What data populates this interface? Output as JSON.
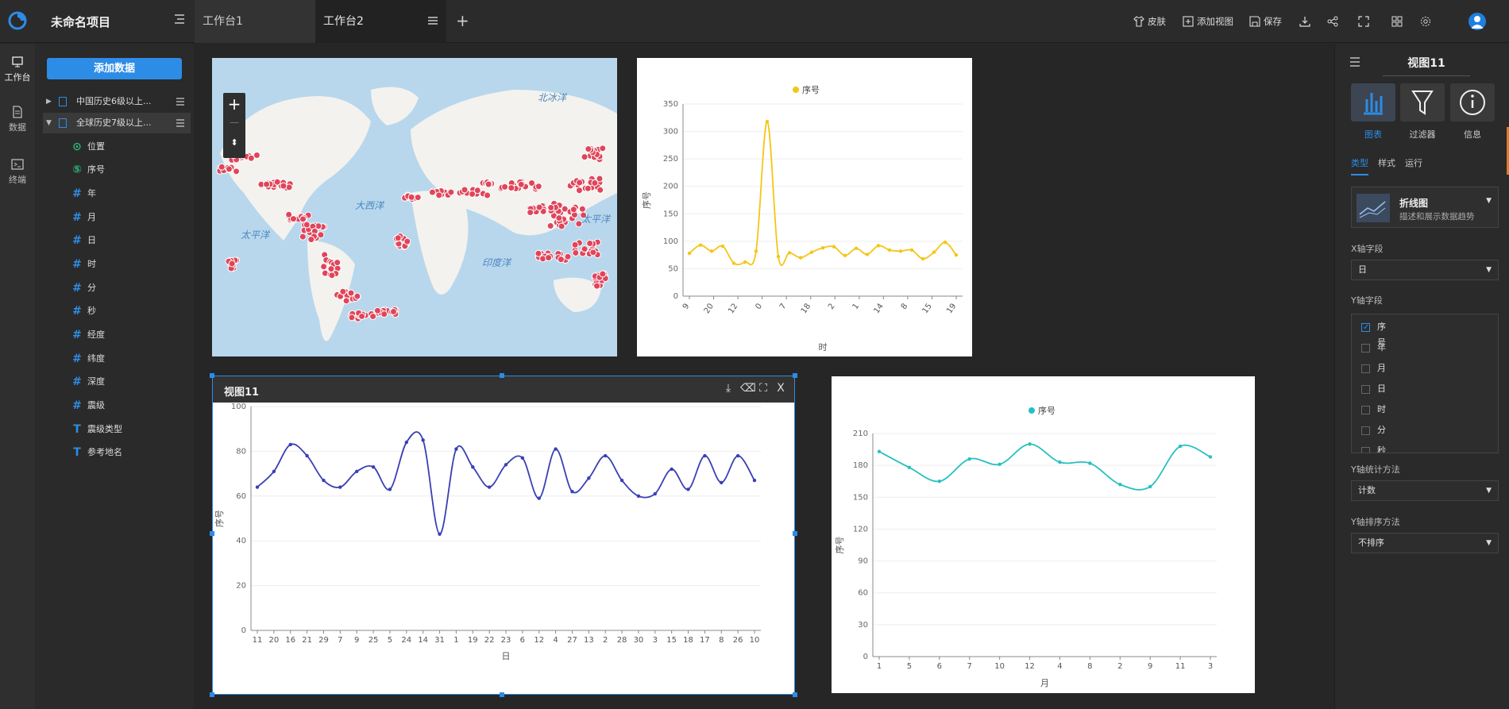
{
  "app": {
    "project_title": "未命名项目",
    "tabs": [
      {
        "label": "工作台1"
      },
      {
        "label": "工作台2"
      }
    ],
    "toolbar": {
      "skin": "皮肤",
      "add_view": "添加视图",
      "save": "保存"
    }
  },
  "leftnav": {
    "items": [
      {
        "label": "工作台"
      },
      {
        "label": "数据"
      },
      {
        "label": "终端"
      }
    ]
  },
  "datapanel": {
    "add_button": "添加数据",
    "datasets": [
      {
        "label": "中国历史6级以上..."
      },
      {
        "label": "全球历史7级以上..."
      }
    ],
    "fields": [
      {
        "icon": "location-icon",
        "label": "位置"
      },
      {
        "icon": "serial-icon",
        "label": "序号"
      },
      {
        "icon": "hash-icon",
        "label": "年"
      },
      {
        "icon": "hash-icon",
        "label": "月"
      },
      {
        "icon": "hash-icon",
        "label": "日"
      },
      {
        "icon": "hash-icon",
        "label": "时"
      },
      {
        "icon": "hash-icon",
        "label": "分"
      },
      {
        "icon": "hash-icon",
        "label": "秒"
      },
      {
        "icon": "hash-icon",
        "label": "经度"
      },
      {
        "icon": "hash-icon",
        "label": "纬度"
      },
      {
        "icon": "hash-icon",
        "label": "深度"
      },
      {
        "icon": "hash-icon",
        "label": "震级"
      },
      {
        "icon": "text-icon",
        "label": "震级类型"
      },
      {
        "icon": "text-icon",
        "label": "参考地名"
      }
    ]
  },
  "map": {
    "labels": {
      "north_ocean": "北冰洋",
      "atlantic": "大西洋",
      "pacific_left": "太平洋",
      "pacific_right": "太平洋",
      "indian": "印度洋"
    },
    "zoom_in": "+",
    "zoom_out": "—"
  },
  "selected_view": {
    "title": "视图11",
    "close_label": "X"
  },
  "colors": {
    "accent": "#2d8ce6",
    "yellow_series": "#f5c518",
    "blue_series": "#3a3fb5",
    "cyan_series": "#27c0c0",
    "map_points": "#e0455a",
    "ocean": "#b8d7ec",
    "land": "#f3f2ee"
  },
  "chart_data": [
    {
      "type": "line",
      "legend": "序号",
      "xlabel": "时",
      "ylabel": "序号",
      "ylim": [
        0,
        350
      ],
      "yticks": [
        0,
        50,
        100,
        150,
        200,
        250,
        300,
        350
      ],
      "tick_labels": [
        "9",
        "20",
        "12",
        "0",
        "7",
        "18",
        "2",
        "1",
        "14",
        "8",
        "15",
        "19"
      ],
      "series": [
        {
          "name": "序号",
          "values": [
            78,
            93,
            82,
            91,
            60,
            62,
            82,
            318,
            72,
            79,
            70,
            80,
            88,
            90,
            74,
            87,
            76,
            92,
            84,
            82,
            84,
            68,
            80,
            98,
            75
          ]
        }
      ]
    },
    {
      "type": "line",
      "legend": "序号",
      "xlabel": "日",
      "ylabel": "序号",
      "ylim": [
        0,
        100
      ],
      "yticks": [
        0,
        20,
        40,
        60,
        80,
        100
      ],
      "categories": [
        "11",
        "20",
        "16",
        "21",
        "29",
        "7",
        "9",
        "25",
        "5",
        "24",
        "14",
        "31",
        "1",
        "19",
        "22",
        "23",
        "6",
        "12",
        "4",
        "27",
        "13",
        "2",
        "28",
        "30",
        "3",
        "15",
        "18",
        "17",
        "8",
        "26",
        "10"
      ],
      "series": [
        {
          "name": "序号",
          "values": [
            64,
            71,
            83,
            78,
            67,
            64,
            71,
            73,
            63,
            84,
            85,
            43,
            81,
            73,
            64,
            74,
            77,
            59,
            81,
            62,
            68,
            78,
            67,
            60,
            61,
            72,
            63,
            78,
            66,
            78,
            67
          ]
        }
      ]
    },
    {
      "type": "line",
      "legend": "序号",
      "xlabel": "月",
      "ylabel": "序号",
      "ylim": [
        0,
        210
      ],
      "yticks": [
        0,
        30,
        60,
        90,
        120,
        150,
        180,
        210
      ],
      "categories": [
        "1",
        "5",
        "6",
        "7",
        "10",
        "12",
        "4",
        "8",
        "2",
        "9",
        "11",
        "3"
      ],
      "series": [
        {
          "name": "序号",
          "values": [
            193,
            178,
            165,
            186,
            181,
            200,
            183,
            182,
            162,
            160,
            198,
            188
          ]
        }
      ]
    }
  ],
  "rightpanel": {
    "title": "视图11",
    "big_buttons": [
      {
        "label": "图表"
      },
      {
        "label": "过滤器"
      },
      {
        "label": "信息"
      }
    ],
    "tabs": [
      {
        "label": "类型"
      },
      {
        "label": "样式"
      },
      {
        "label": "运行"
      }
    ],
    "chart_type": {
      "name": "折线图",
      "desc": "描述和展示数据趋势"
    },
    "x_label": "X轴字段",
    "x_value": "日",
    "y_label": "Y轴字段",
    "y_fields": [
      {
        "label": "序号",
        "checked": true
      },
      {
        "label": "年",
        "checked": false
      },
      {
        "label": "月",
        "checked": false
      },
      {
        "label": "日",
        "checked": false
      },
      {
        "label": "时",
        "checked": false
      },
      {
        "label": "分",
        "checked": false
      },
      {
        "label": "秒",
        "checked": false
      }
    ],
    "stat_label": "Y轴统计方法",
    "stat_value": "计数",
    "sort_label": "Y轴排序方法",
    "sort_value": "不排序"
  }
}
